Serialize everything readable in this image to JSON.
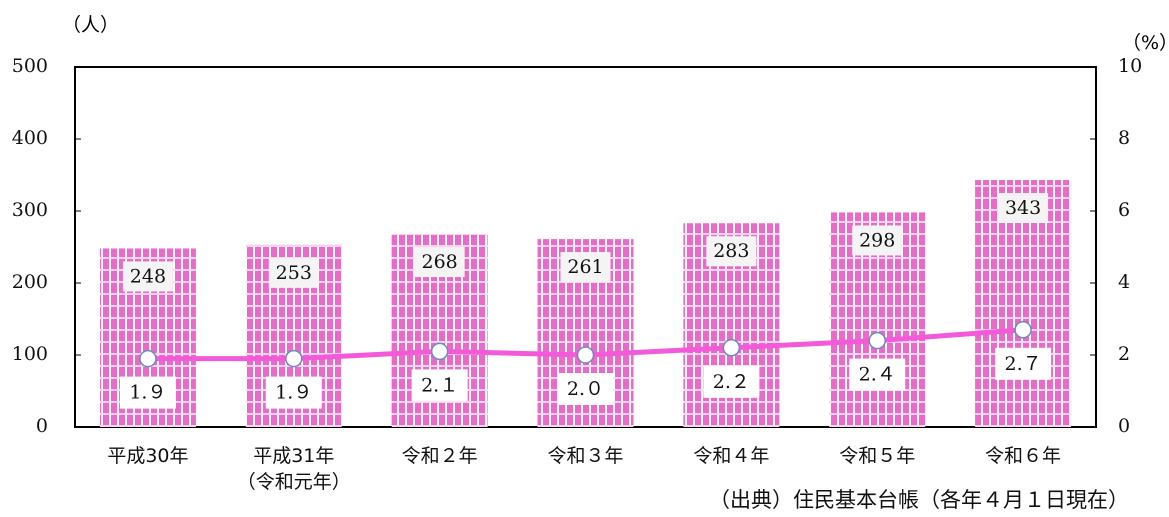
{
  "chart_data": {
    "type": "bar_line",
    "categories": [
      "平成30年",
      "平成31年\n（令和元年）",
      "令和２年",
      "令和３年",
      "令和４年",
      "令和５年",
      "令和６年"
    ],
    "series": [
      {
        "values": [
          248,
          253,
          268,
          261,
          283,
          298,
          343
        ],
        "color": "#e96bc9"
      },
      {
        "values": [
          1.9,
          1.9,
          2.1,
          2.0,
          2.2,
          2.4,
          2.7
        ],
        "value_labels": [
          "1.９",
          "1.９",
          "2.１",
          "2.０",
          "2.２",
          "2.４",
          "2.７"
        ],
        "color": "#f25ad9",
        "axis": "y2"
      }
    ],
    "ylim": [
      0,
      500
    ],
    "yticks": [
      0,
      100,
      200,
      300,
      400,
      500
    ],
    "y2lim": [
      0,
      10
    ],
    "y2ticks": [
      0,
      2,
      4,
      6,
      8,
      10
    ],
    "y_label": "（人）",
    "y2_label": "（%）",
    "source": "（出典）住民基本台帳（各年４月１日現在）"
  }
}
